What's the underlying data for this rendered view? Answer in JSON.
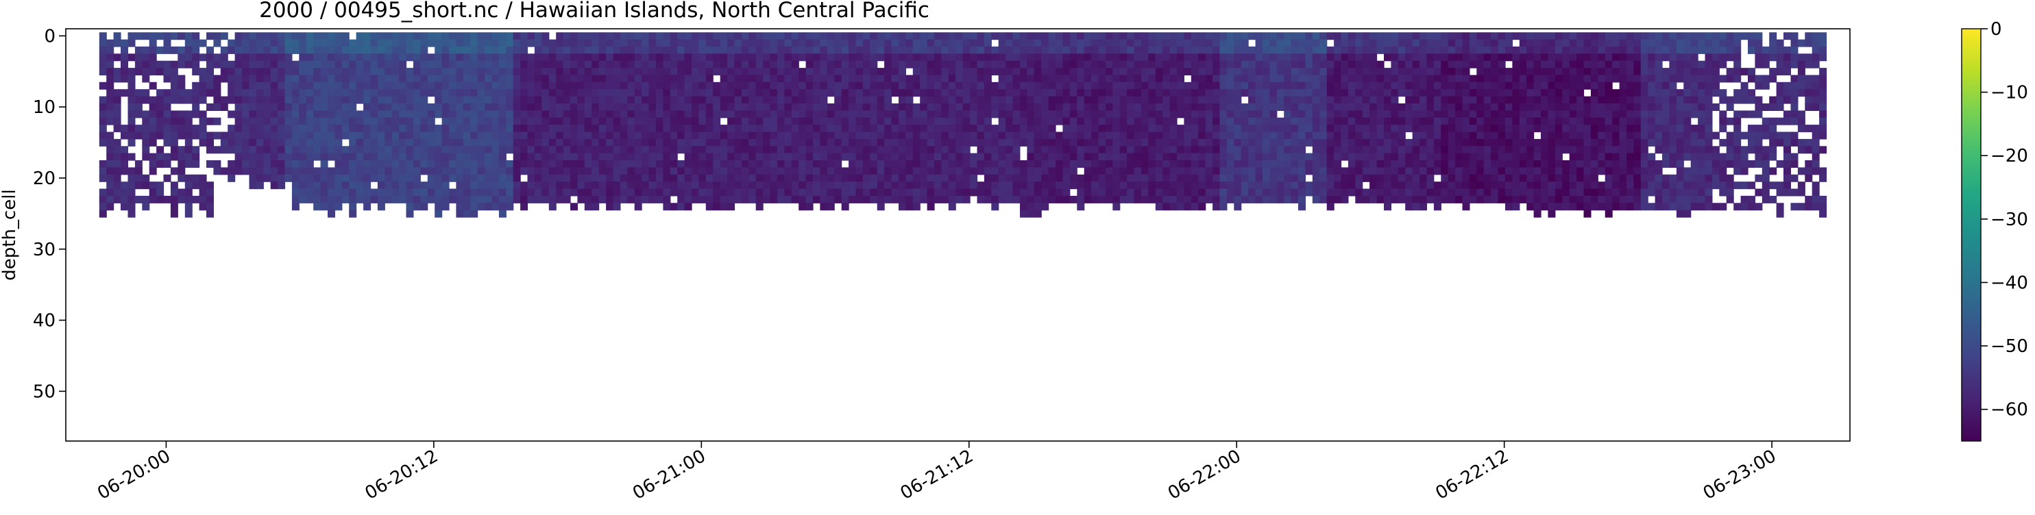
{
  "chart_data": {
    "type": "heatmap",
    "title": "2000 / 00495_short.nc / Hawaiian Islands, North Central Pacific",
    "xlabel": "",
    "ylabel": "depth_cell",
    "x_tick_labels": [
      "06-20:00",
      "06-20:12",
      "06-21:00",
      "06-21:12",
      "06-22:00",
      "06-22:12",
      "06-23:00"
    ],
    "x_ticks_hours": [
      0,
      12,
      24,
      36,
      48,
      60,
      72
    ],
    "xlim_hours": [
      -4.5,
      75.5
    ],
    "y_ticks": [
      0,
      10,
      20,
      30,
      40,
      50
    ],
    "ylim": [
      57,
      -1
    ],
    "colorbar": {
      "colormap": "viridis",
      "range": [
        -65,
        0
      ],
      "ticks": [
        0,
        -10,
        -20,
        -30,
        -40,
        -50,
        -60
      ]
    },
    "data_extent_depth_cells": [
      0,
      26
    ],
    "typical_value_range": [
      -64,
      -44
    ]
  }
}
